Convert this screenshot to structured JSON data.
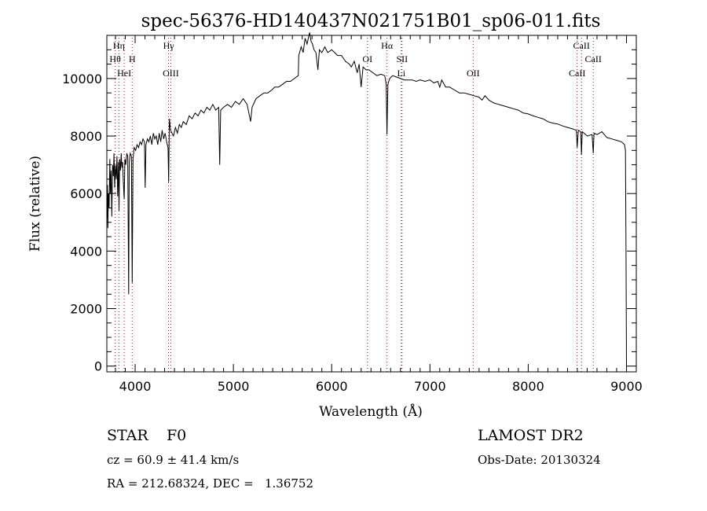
{
  "chart_data": {
    "type": "line",
    "title": "spec-56376-HD140437N021751B01_sp06-011.fits",
    "xlabel": "Wavelength (Å)",
    "ylabel": "Flux (relative)",
    "xlim": [
      3712,
      9100
    ],
    "ylim": [
      -200,
      11500
    ],
    "xticks": [
      4000,
      5000,
      6000,
      7000,
      8000,
      9000
    ],
    "xtick_labels": [
      "4000",
      "5000",
      "6000",
      "7000",
      "8000",
      "9000"
    ],
    "yticks": [
      0,
      2000,
      4000,
      6000,
      8000,
      10000
    ],
    "ytick_labels": [
      "0",
      "2000",
      "4000",
      "6000",
      "8000",
      "10000"
    ],
    "grid": false,
    "lines": [
      {
        "wavelength": 3835,
        "label": "Hη",
        "row": 0
      },
      {
        "wavelength": 3797,
        "label": "Hθ",
        "row": 1
      },
      {
        "wavelength": 3970,
        "label": "H",
        "row": 1
      },
      {
        "wavelength": 3889,
        "label": "HeI",
        "row": 2
      },
      {
        "wavelength": 4340,
        "label": "Hγ",
        "row": 0
      },
      {
        "wavelength": 4363,
        "label": "OIII",
        "row": 2
      },
      {
        "wavelength": 6364,
        "label": "OI",
        "row": 1
      },
      {
        "wavelength": 6563,
        "label": "Hα",
        "row": 0
      },
      {
        "wavelength": 6716,
        "label": "SII",
        "row": 1
      },
      {
        "wavelength": 6708,
        "label": "Li",
        "row": 2
      },
      {
        "wavelength": 7440,
        "label": "OII",
        "row": 2
      },
      {
        "wavelength": 8542,
        "label": "CaII",
        "row": 0
      },
      {
        "wavelength": 8662,
        "label": "CaII",
        "row": 1
      },
      {
        "wavelength": 8498,
        "label": "CaII",
        "row": 2
      }
    ],
    "series": [
      {
        "name": "spectrum",
        "points": [
          [
            3712,
            5000
          ],
          [
            3718,
            6300
          ],
          [
            3722,
            4800
          ],
          [
            3728,
            6000
          ],
          [
            3735,
            5500
          ],
          [
            3742,
            7200
          ],
          [
            3748,
            6000
          ],
          [
            3755,
            6800
          ],
          [
            3762,
            5200
          ],
          [
            3770,
            7000
          ],
          [
            3778,
            6600
          ],
          [
            3785,
            7400
          ],
          [
            3792,
            6200
          ],
          [
            3800,
            7000
          ],
          [
            3808,
            6500
          ],
          [
            3815,
            7300
          ],
          [
            3822,
            5900
          ],
          [
            3830,
            7100
          ],
          [
            3836,
            5400
          ],
          [
            3842,
            7200
          ],
          [
            3850,
            6800
          ],
          [
            3858,
            7400
          ],
          [
            3865,
            6900
          ],
          [
            3872,
            7100
          ],
          [
            3880,
            6400
          ],
          [
            3889,
            5800
          ],
          [
            3896,
            7200
          ],
          [
            3905,
            7000
          ],
          [
            3915,
            7400
          ],
          [
            3925,
            7300
          ],
          [
            3934,
            2500
          ],
          [
            3940,
            7100
          ],
          [
            3950,
            7400
          ],
          [
            3962,
            7300
          ],
          [
            3970,
            2900
          ],
          [
            3978,
            7200
          ],
          [
            3990,
            7600
          ],
          [
            4005,
            7500
          ],
          [
            4020,
            7700
          ],
          [
            4035,
            7600
          ],
          [
            4050,
            7800
          ],
          [
            4065,
            7700
          ],
          [
            4080,
            7900
          ],
          [
            4095,
            7800
          ],
          [
            4102,
            6200
          ],
          [
            4110,
            7700
          ],
          [
            4125,
            7900
          ],
          [
            4140,
            7800
          ],
          [
            4155,
            8000
          ],
          [
            4170,
            7700
          ],
          [
            4185,
            8100
          ],
          [
            4200,
            7900
          ],
          [
            4215,
            8000
          ],
          [
            4230,
            7700
          ],
          [
            4245,
            8100
          ],
          [
            4260,
            7800
          ],
          [
            4275,
            8200
          ],
          [
            4290,
            7900
          ],
          [
            4305,
            8100
          ],
          [
            4320,
            7800
          ],
          [
            4335,
            7600
          ],
          [
            4341,
            6400
          ],
          [
            4348,
            8600
          ],
          [
            4360,
            8200
          ],
          [
            4375,
            8100
          ],
          [
            4390,
            8000
          ],
          [
            4410,
            8300
          ],
          [
            4430,
            8100
          ],
          [
            4450,
            8400
          ],
          [
            4470,
            8300
          ],
          [
            4490,
            8500
          ],
          [
            4520,
            8400
          ],
          [
            4550,
            8700
          ],
          [
            4580,
            8600
          ],
          [
            4610,
            8800
          ],
          [
            4640,
            8700
          ],
          [
            4670,
            8900
          ],
          [
            4700,
            8800
          ],
          [
            4730,
            9000
          ],
          [
            4760,
            8900
          ],
          [
            4790,
            9100
          ],
          [
            4820,
            8900
          ],
          [
            4850,
            9000
          ],
          [
            4861,
            7000
          ],
          [
            4870,
            8900
          ],
          [
            4900,
            9000
          ],
          [
            4940,
            9100
          ],
          [
            4980,
            9000
          ],
          [
            5020,
            9200
          ],
          [
            5060,
            9100
          ],
          [
            5100,
            9300
          ],
          [
            5140,
            9100
          ],
          [
            5175,
            8500
          ],
          [
            5190,
            9000
          ],
          [
            5230,
            9300
          ],
          [
            5270,
            9400
          ],
          [
            5310,
            9500
          ],
          [
            5350,
            9500
          ],
          [
            5390,
            9600
          ],
          [
            5420,
            9700
          ],
          [
            5460,
            9700
          ],
          [
            5500,
            9800
          ],
          [
            5540,
            9900
          ],
          [
            5580,
            9900
          ],
          [
            5620,
            10000
          ],
          [
            5660,
            10100
          ],
          [
            5665,
            10800
          ],
          [
            5690,
            11100
          ],
          [
            5710,
            10900
          ],
          [
            5730,
            11400
          ],
          [
            5750,
            11200
          ],
          [
            5775,
            11600
          ],
          [
            5790,
            11300
          ],
          [
            5805,
            11200
          ],
          [
            5820,
            11000
          ],
          [
            5840,
            10900
          ],
          [
            5860,
            10300
          ],
          [
            5875,
            11000
          ],
          [
            5900,
            10900
          ],
          [
            5930,
            11100
          ],
          [
            5960,
            10900
          ],
          [
            6000,
            11000
          ],
          [
            6030,
            10900
          ],
          [
            6060,
            10800
          ],
          [
            6100,
            10800
          ],
          [
            6140,
            10600
          ],
          [
            6180,
            10500
          ],
          [
            6200,
            10400
          ],
          [
            6230,
            10600
          ],
          [
            6260,
            10200
          ],
          [
            6280,
            10500
          ],
          [
            6300,
            9700
          ],
          [
            6320,
            10400
          ],
          [
            6350,
            10300
          ],
          [
            6380,
            10300
          ],
          [
            6420,
            10200
          ],
          [
            6460,
            10100
          ],
          [
            6500,
            10150
          ],
          [
            6540,
            10100
          ],
          [
            6555,
            9800
          ],
          [
            6563,
            8050
          ],
          [
            6572,
            9800
          ],
          [
            6590,
            10000
          ],
          [
            6620,
            10100
          ],
          [
            6660,
            10050
          ],
          [
            6700,
            10000
          ],
          [
            6740,
            9950
          ],
          [
            6780,
            9950
          ],
          [
            6820,
            9950
          ],
          [
            6860,
            9900
          ],
          [
            6900,
            9950
          ],
          [
            6950,
            9900
          ],
          [
            7000,
            9950
          ],
          [
            7040,
            9850
          ],
          [
            7080,
            9900
          ],
          [
            7100,
            9700
          ],
          [
            7120,
            9950
          ],
          [
            7160,
            9700
          ],
          [
            7200,
            9700
          ],
          [
            7250,
            9600
          ],
          [
            7300,
            9500
          ],
          [
            7350,
            9500
          ],
          [
            7400,
            9450
          ],
          [
            7450,
            9400
          ],
          [
            7500,
            9350
          ],
          [
            7530,
            9250
          ],
          [
            7560,
            9400
          ],
          [
            7600,
            9250
          ],
          [
            7650,
            9150
          ],
          [
            7700,
            9100
          ],
          [
            7750,
            9050
          ],
          [
            7800,
            9000
          ],
          [
            7850,
            8950
          ],
          [
            7900,
            8900
          ],
          [
            7950,
            8800
          ],
          [
            8000,
            8770
          ],
          [
            8050,
            8700
          ],
          [
            8100,
            8650
          ],
          [
            8150,
            8600
          ],
          [
            8200,
            8500
          ],
          [
            8250,
            8450
          ],
          [
            8300,
            8420
          ],
          [
            8350,
            8350
          ],
          [
            8400,
            8300
          ],
          [
            8450,
            8250
          ],
          [
            8490,
            8200
          ],
          [
            8498,
            7600
          ],
          [
            8510,
            8200
          ],
          [
            8535,
            8150
          ],
          [
            8542,
            7350
          ],
          [
            8550,
            8150
          ],
          [
            8600,
            8000
          ],
          [
            8650,
            8050
          ],
          [
            8662,
            7400
          ],
          [
            8670,
            8100
          ],
          [
            8700,
            8050
          ],
          [
            8750,
            8150
          ],
          [
            8800,
            7950
          ],
          [
            8850,
            7900
          ],
          [
            8900,
            7850
          ],
          [
            8950,
            7800
          ],
          [
            8980,
            7700
          ],
          [
            8990,
            7500
          ],
          [
            8995,
            4000
          ],
          [
            9000,
            0
          ]
        ]
      }
    ]
  },
  "info": {
    "class": "STAR",
    "subclass": "F0",
    "cz": "cz = 60.9 ± 41.4 km/s",
    "radec": "RA = 212.68324, DEC =   1.36752",
    "survey": "LAMOST DR2",
    "obs_date": "Obs-Date: 20130324"
  },
  "colors": {
    "line_marker": "#8b1a1a",
    "spectrum": "#000000"
  }
}
